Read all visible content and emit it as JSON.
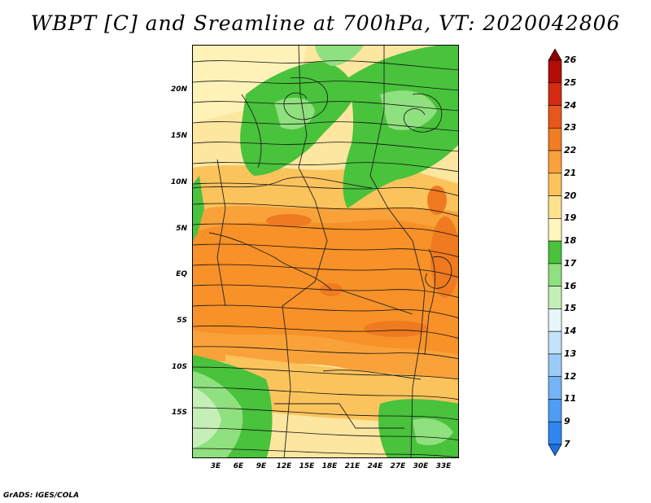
{
  "title": "WBPT [C] and Sreamline at 700hPa, VT: 2020042806",
  "footer": "GrADS: IGES/COLA",
  "map": {
    "lat_labels": [
      "20N",
      "15N",
      "10N",
      "5N",
      "EQ",
      "5S",
      "10S",
      "15S"
    ],
    "lon_labels": [
      "3E",
      "6E",
      "9E",
      "12E",
      "15E",
      "18E",
      "21E",
      "24E",
      "27E",
      "30E",
      "33E"
    ]
  },
  "colorbar": {
    "labels": [
      "7",
      "9",
      "11",
      "12",
      "13",
      "14",
      "15",
      "16",
      "17",
      "18",
      "19",
      "20",
      "21",
      "22",
      "23",
      "24",
      "25",
      "26"
    ],
    "colors": [
      "#1f6fe0",
      "#2f86f0",
      "#4f9cf5",
      "#74b4f7",
      "#9ccbf8",
      "#c4e2f8",
      "#e7f6fb",
      "#c6efb8",
      "#8fe07e",
      "#49c23c",
      "#fff5bf",
      "#fde28e",
      "#fbc45a",
      "#f9a13c",
      "#f07d22",
      "#e8571b",
      "#d42c12",
      "#b30d06",
      "#8c0000"
    ]
  }
}
